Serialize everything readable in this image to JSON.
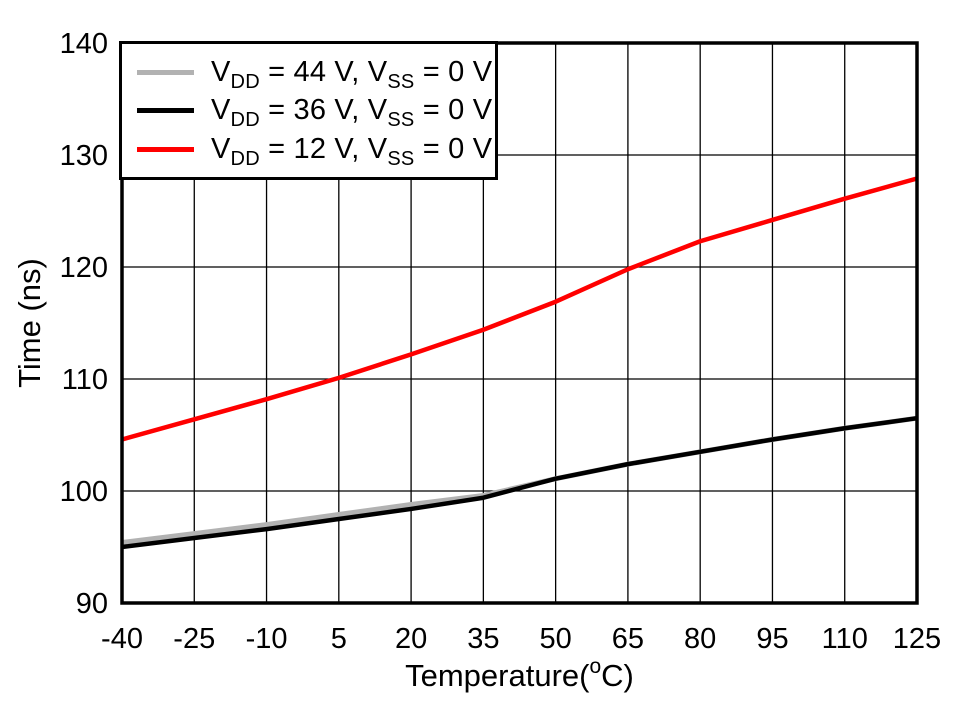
{
  "figure": {
    "background": "#ffffff",
    "frame_color": "#000000",
    "grid_color": "#000000"
  },
  "chart_data": {
    "type": "line",
    "title": "",
    "xlabel_parts": [
      "Temperature(",
      "o",
      "C)"
    ],
    "ylabel": "Time (ns)",
    "xlim": [
      -40,
      125
    ],
    "ylim": [
      90,
      140
    ],
    "xticks": [
      -40,
      -25,
      -10,
      5,
      20,
      35,
      50,
      65,
      80,
      95,
      110,
      125
    ],
    "yticks": [
      90,
      100,
      110,
      120,
      130,
      140
    ],
    "grid": true,
    "legend_position": "top-left",
    "x": [
      -40,
      -25,
      -10,
      5,
      20,
      35,
      50,
      65,
      80,
      95,
      110,
      125
    ],
    "series": [
      {
        "name": "VDD = 44 V, VSS = 0 V",
        "color": "#b2b2b2",
        "line_width": 5,
        "values": [
          95.4,
          96.2,
          97.0,
          97.9,
          98.8,
          99.6,
          101.1,
          102.4,
          103.5,
          104.6,
          105.6,
          106.5
        ]
      },
      {
        "name": "VDD = 36 V, VSS = 0 V",
        "color": "#000000",
        "line_width": 4.5,
        "values": [
          95.0,
          95.8,
          96.6,
          97.5,
          98.4,
          99.4,
          101.1,
          102.4,
          103.5,
          104.6,
          105.6,
          106.5
        ]
      },
      {
        "name": "VDD = 12 V, VSS = 0 V",
        "color": "#ff0000",
        "line_width": 4.5,
        "values": [
          104.6,
          106.4,
          108.2,
          110.1,
          112.2,
          114.4,
          116.9,
          119.8,
          122.3,
          124.2,
          126.1,
          127.9
        ]
      }
    ],
    "legend": [
      {
        "parts": [
          "V",
          "DD",
          " = 44 V, V",
          "SS",
          " = 0 V"
        ],
        "color": "#b2b2b2"
      },
      {
        "parts": [
          "V",
          "DD",
          " = 36 V, V",
          "SS",
          " = 0 V"
        ],
        "color": "#000000"
      },
      {
        "parts": [
          "V",
          "DD",
          " = 12 V, V",
          "SS",
          " = 0 V"
        ],
        "color": "#ff0000"
      }
    ]
  }
}
